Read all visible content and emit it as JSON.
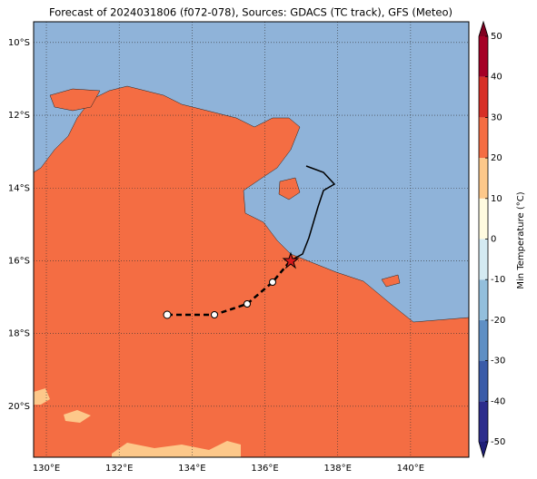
{
  "chart_data": {
    "type": "map",
    "title": "Forecast of 2024031806 (f072-078), Sources: GDACS (TC track), GFS (Meteo)",
    "xlim": [
      129.65,
      141.6
    ],
    "ylim": [
      -21.4,
      -9.43
    ],
    "xticks": [
      {
        "value": 130,
        "label": "130°E"
      },
      {
        "value": 132,
        "label": "132°E"
      },
      {
        "value": 134,
        "label": "134°E"
      },
      {
        "value": 136,
        "label": "136°E"
      },
      {
        "value": 138,
        "label": "138°E"
      },
      {
        "value": 140,
        "label": "140°E"
      }
    ],
    "yticks": [
      {
        "value": -10,
        "label": "10°S"
      },
      {
        "value": -12,
        "label": "12°S"
      },
      {
        "value": -14,
        "label": "14°S"
      },
      {
        "value": -16,
        "label": "16°S"
      },
      {
        "value": -18,
        "label": "18°S"
      },
      {
        "value": -20,
        "label": "20°S"
      }
    ],
    "grid": true,
    "colorbar": {
      "label": "Min Temperature (°C)",
      "lim": [
        -50,
        50
      ],
      "ticks": [
        -50,
        -40,
        -30,
        -20,
        -10,
        0,
        10,
        20,
        30,
        40,
        50
      ],
      "colors": [
        "#2c2c8c",
        "#3a5ba8",
        "#5f8fc4",
        "#93bfdc",
        "#d4eaf2",
        "#fffbe0",
        "#fdc88a",
        "#f46d43",
        "#d73027",
        "#a50026"
      ],
      "extend_colors": [
        "#1e1e78",
        "#800020"
      ]
    }
  }
}
